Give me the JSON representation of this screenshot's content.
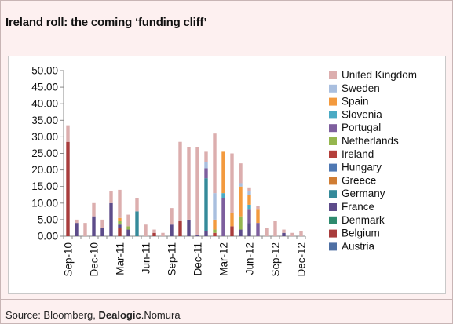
{
  "title": "Ireland roll: the coming ‘funding cliff’",
  "source": {
    "prefix": "Source: Bloomberg, ",
    "bold": "Dealogic",
    "suffix": ".Nomura"
  },
  "chart_data": {
    "type": "bar",
    "stacked": true,
    "title": "",
    "xlabel": "",
    "ylabel": "",
    "ylim": [
      0,
      50
    ],
    "yticks": [
      "0.00",
      "5.00",
      "10.00",
      "15.00",
      "20.00",
      "25.00",
      "30.00",
      "35.00",
      "40.00",
      "45.00",
      "50.00"
    ],
    "grid": false,
    "legend_position": "right",
    "categories": [
      "Sep-10",
      "Oct-10",
      "Nov-10",
      "Dec-10",
      "Jan-11",
      "Feb-11",
      "Mar-11",
      "Apr-11",
      "May-11",
      "Jun-11",
      "Jul-11",
      "Aug-11",
      "Sep-11",
      "Oct-11",
      "Nov-11",
      "Dec-11",
      "Jan-12",
      "Feb-12",
      "Mar-12",
      "Apr-12",
      "May-12",
      "Jun-12",
      "Jul-12",
      "Aug-12",
      "Sep-12",
      "Oct-12",
      "Nov-12",
      "Dec-12"
    ],
    "tick_labels": [
      "Sep-10",
      "",
      "",
      "Dec-10",
      "",
      "",
      "Mar-11",
      "",
      "",
      "Jun-11",
      "",
      "",
      "Sep-11",
      "",
      "",
      "Dec-11",
      "",
      "",
      "Mar-12",
      "",
      "",
      "Jun-12",
      "",
      "",
      "Sep-12",
      "",
      "",
      "Dec-12"
    ],
    "series": [
      {
        "name": "Austria",
        "color": "#4e6fa3",
        "values": [
          0,
          0,
          0,
          0,
          0,
          0,
          0,
          0,
          0,
          0,
          0,
          0,
          0,
          0,
          0,
          0,
          0,
          0,
          0,
          0,
          0,
          0,
          0,
          0,
          0,
          0,
          0,
          0
        ]
      },
      {
        "name": "Belgium",
        "color": "#a83c3c",
        "values": [
          28.5,
          0,
          0,
          0,
          0,
          0,
          2.5,
          0,
          0,
          0,
          1,
          0,
          0,
          4.5,
          0,
          0,
          0,
          0,
          0,
          3,
          0,
          0,
          0,
          0,
          0,
          0,
          0,
          0
        ]
      },
      {
        "name": "Denmark",
        "color": "#2e8a6e",
        "values": [
          0,
          0,
          0,
          0,
          0,
          0,
          0,
          0,
          0,
          0,
          0,
          0,
          0,
          0,
          0,
          0,
          0,
          0,
          0,
          0,
          0,
          0,
          0,
          0,
          0,
          0,
          0,
          0
        ]
      },
      {
        "name": "France",
        "color": "#5d4c8a",
        "values": [
          0,
          4,
          0,
          6,
          2.5,
          10,
          1,
          2,
          0,
          0,
          0,
          0,
          3.5,
          0,
          5,
          0.5,
          1.5,
          0,
          0,
          0,
          2,
          4,
          0,
          0,
          0,
          1,
          0,
          0
        ]
      },
      {
        "name": "Germany",
        "color": "#358a9a",
        "values": [
          0,
          0,
          0,
          0,
          0,
          0,
          0,
          0,
          7.5,
          0,
          0,
          0,
          0,
          0,
          0,
          0,
          16,
          0,
          0,
          0,
          0,
          0,
          0,
          0,
          0,
          0,
          0,
          0
        ]
      },
      {
        "name": "Greece",
        "color": "#d07d33",
        "values": [
          0,
          0,
          0,
          0,
          0,
          0,
          0,
          0,
          0,
          0,
          0,
          0,
          0,
          0,
          0,
          0,
          0,
          0,
          0,
          0,
          0,
          0,
          0,
          0,
          0,
          0,
          0,
          0
        ]
      },
      {
        "name": "Hungary",
        "color": "#4e78b3",
        "values": [
          0,
          0,
          0,
          0,
          0,
          0,
          0,
          0,
          0,
          0,
          0,
          0,
          0,
          0,
          0,
          0,
          0,
          0,
          0,
          0,
          0,
          0,
          0,
          0,
          0,
          0,
          0,
          0
        ]
      },
      {
        "name": "Ireland",
        "color": "#b43f3a",
        "values": [
          0,
          0,
          0,
          0,
          0,
          0,
          0,
          0,
          0,
          0,
          0,
          0,
          0,
          0,
          0,
          0,
          0,
          1,
          0,
          0,
          0,
          0,
          0,
          0,
          0,
          0,
          0,
          0
        ]
      },
      {
        "name": "Netherlands",
        "color": "#95b64e",
        "values": [
          0,
          0,
          0,
          0,
          0,
          0,
          1,
          1,
          0,
          0,
          0,
          0,
          0,
          0,
          0,
          0,
          0,
          1,
          0,
          0,
          4,
          0,
          0,
          0,
          0,
          0,
          0,
          0
        ]
      },
      {
        "name": "Portugal",
        "color": "#7e5f9e",
        "values": [
          0,
          0,
          0,
          0,
          0,
          0,
          0,
          0,
          0,
          0,
          0,
          0,
          0,
          0,
          0,
          0,
          3,
          0,
          11.5,
          0,
          0,
          4,
          4,
          0,
          0,
          0,
          0,
          0
        ]
      },
      {
        "name": "Slovenia",
        "color": "#4aaac4",
        "values": [
          0,
          0,
          0,
          0,
          0,
          0,
          0,
          0,
          0,
          0,
          0,
          0,
          0,
          0,
          0,
          0,
          0,
          0,
          1.5,
          0,
          0,
          1.5,
          0,
          0,
          0,
          0,
          0,
          0
        ]
      },
      {
        "name": "Spain",
        "color": "#f39a3e",
        "values": [
          0,
          0,
          0,
          0,
          0,
          0,
          1,
          0,
          0,
          0,
          0,
          0,
          0,
          0,
          0,
          0,
          0,
          3,
          12.5,
          4,
          9,
          3,
          4,
          0,
          0,
          0,
          0,
          0
        ]
      },
      {
        "name": "Sweden",
        "color": "#a9bfdf",
        "values": [
          0,
          0,
          0,
          0,
          0,
          0,
          0,
          0,
          0,
          0,
          0,
          0,
          0,
          0,
          0,
          0,
          2,
          8,
          0,
          0,
          1,
          1,
          0,
          0,
          0,
          0,
          0,
          0
        ]
      },
      {
        "name": "United Kingdom",
        "color": "#dcaeae",
        "values": [
          5,
          1,
          4,
          4,
          2.5,
          3.5,
          8.5,
          3.5,
          4,
          3.5,
          1,
          1,
          5,
          24,
          22,
          26.5,
          3,
          18,
          0,
          18,
          6,
          1,
          1,
          2.5,
          4.5,
          1,
          1,
          1.5
        ]
      }
    ]
  }
}
